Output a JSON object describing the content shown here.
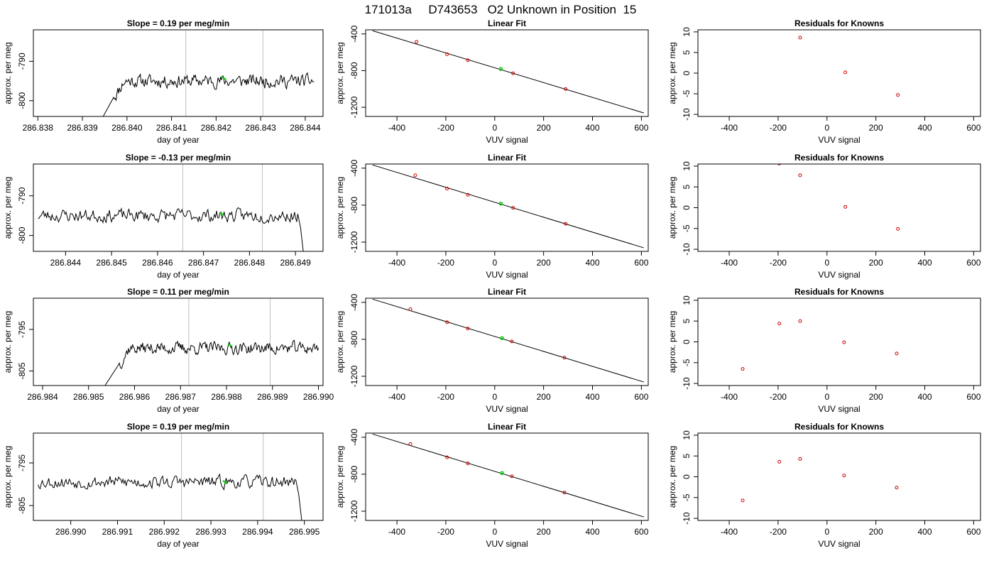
{
  "page": {
    "title": "171013a     D743653   O2 Unknown in Position  15"
  },
  "colors": {
    "trace": "#000000",
    "window_line": "#bebebe",
    "unknown_point": "#00cc00",
    "known_point": "#cc0000",
    "fit_line": "#000000"
  },
  "chart_data": [
    {
      "type": "line",
      "row": 0,
      "title": "Slope =  0.19  per meg/min",
      "xlabel": "day of year",
      "ylabel": "approx. per meg",
      "xlim": [
        286.8379,
        286.8444
      ],
      "ylim": [
        -804.0,
        -782.0
      ],
      "xticks": [
        "286.838",
        "286.839",
        "286.840",
        "286.841",
        "286.842",
        "286.843",
        "286.844"
      ],
      "xtick_values": [
        286.838,
        286.839,
        286.84,
        286.841,
        286.842,
        286.843,
        286.844
      ],
      "yticks": [
        "-790",
        "-800"
      ],
      "ytick_values": [
        -790,
        -800
      ],
      "x_start": 286.83937,
      "x_end": 286.8442,
      "base_level": -795.0,
      "noise": 1.8,
      "onset": [
        286.83937,
        -806.0,
        286.8397
      ],
      "tail": null,
      "seed": 11,
      "vlines": [
        286.84132,
        286.84305
      ],
      "marker": [
        286.84218,
        -794.3
      ]
    },
    {
      "type": "scatter",
      "row": 0,
      "title": "Linear Fit",
      "xlabel": "VUV signal",
      "ylabel": "approx. per meg",
      "xlim": [
        -528,
        628
      ],
      "ylim": [
        -1300,
        -355
      ],
      "xticks": [
        "-400",
        "-200",
        "0",
        "200",
        "400",
        "600"
      ],
      "xtick_values": [
        -400,
        -200,
        0,
        200,
        400,
        600
      ],
      "yticks": [
        "-400",
        "-800",
        "-1200"
      ],
      "ytick_values": [
        -400,
        -800,
        -1200
      ],
      "known_x": [
        -320,
        -195,
        -110,
        75,
        290
      ],
      "known_y": [
        -486,
        -621,
        -687,
        -829,
        -1001
      ],
      "unknown_x": [
        25
      ],
      "unknown_y": [
        -782
      ],
      "fit_x": [
        -500,
        610
      ],
      "fit_y": [
        -365,
        -1262
      ]
    },
    {
      "type": "scatter",
      "row": 0,
      "title": "Residuals for Knowns",
      "xlabel": "VUV signal",
      "ylabel": "approx. per meg",
      "xlim": [
        -528,
        628
      ],
      "ylim": [
        -10.5,
        10.5
      ],
      "xticks": [
        "-400",
        "-200",
        "0",
        "200",
        "400",
        "600"
      ],
      "xtick_values": [
        -400,
        -200,
        0,
        200,
        400,
        600
      ],
      "yticks": [
        "10",
        "5",
        "0",
        "-5",
        "-10"
      ],
      "ytick_values": [
        10,
        5,
        0,
        -5,
        -10
      ],
      "known_x": [
        -110,
        75,
        290
      ],
      "known_y": [
        8.6,
        0.2,
        -5.3
      ]
    },
    {
      "type": "line",
      "row": 1,
      "title": "Slope =  -0.13  per meg/min",
      "xlabel": "day of year",
      "ylabel": "approx. per meg",
      "xlim": [
        286.8433,
        286.8496
      ],
      "ylim": [
        -804.0,
        -782.0
      ],
      "xticks": [
        "286.844",
        "286.845",
        "286.846",
        "286.847",
        "286.848",
        "286.849"
      ],
      "xtick_values": [
        286.844,
        286.845,
        286.846,
        286.847,
        286.848,
        286.849
      ],
      "yticks": [
        "-790",
        "-800"
      ],
      "ytick_values": [
        -790,
        -800
      ],
      "x_start": 286.8434,
      "x_end": 286.84924,
      "base_level": -795.0,
      "noise": 1.8,
      "onset": null,
      "tail": [
        286.84905,
        -806.0
      ],
      "seed": 23,
      "vlines": [
        286.84655,
        286.84828
      ],
      "marker": [
        286.8474,
        -794.6
      ]
    },
    {
      "type": "scatter",
      "row": 1,
      "title": "Linear Fit",
      "xlabel": "VUV signal",
      "ylabel": "approx. per meg",
      "xlim": [
        -528,
        628
      ],
      "ylim": [
        -1300,
        -355
      ],
      "xticks": [
        "-400",
        "-200",
        "0",
        "200",
        "400",
        "600"
      ],
      "xtick_values": [
        -400,
        -200,
        0,
        200,
        400,
        600
      ],
      "yticks": [
        "-400",
        "-800",
        "-1200"
      ],
      "ytick_values": [
        -400,
        -800,
        -1200
      ],
      "known_x": [
        -325,
        -195,
        -110,
        75,
        290
      ],
      "known_y": [
        -477,
        -621,
        -688,
        -829,
        -1001
      ],
      "unknown_x": [
        25
      ],
      "unknown_y": [
        -783
      ],
      "fit_x": [
        -500,
        610
      ],
      "fit_y": [
        -365,
        -1262
      ]
    },
    {
      "type": "scatter",
      "row": 1,
      "title": "Residuals for Knowns",
      "xlabel": "VUV signal",
      "ylabel": "approx. per meg",
      "xlim": [
        -528,
        628
      ],
      "ylim": [
        -10.5,
        10.5
      ],
      "xticks": [
        "-400",
        "-200",
        "0",
        "200",
        "400",
        "600"
      ],
      "xtick_values": [
        -400,
        -200,
        0,
        200,
        400,
        600
      ],
      "yticks": [
        "10",
        "5",
        "0",
        "-5",
        "-10"
      ],
      "ytick_values": [
        10,
        5,
        0,
        -5,
        -10
      ],
      "known_x": [
        -195,
        -110,
        75,
        290
      ],
      "known_y": [
        10.6,
        7.8,
        0.2,
        -5.1
      ]
    },
    {
      "type": "line",
      "row": 2,
      "title": "Slope =  0.11  per meg/min",
      "xlabel": "day of year",
      "ylabel": "approx. per meg",
      "xlim": [
        286.9838,
        286.9901
      ],
      "ylim": [
        -808.5,
        -787.5
      ],
      "xticks": [
        "286.984",
        "286.985",
        "286.986",
        "286.987",
        "286.988",
        "286.989",
        "286.990"
      ],
      "xtick_values": [
        286.984,
        286.985,
        286.986,
        286.987,
        286.988,
        286.989,
        286.99
      ],
      "yticks": [
        "-795",
        "-805"
      ],
      "ytick_values": [
        -795,
        -805
      ],
      "x_start": 286.98527,
      "x_end": 286.99,
      "base_level": -799.5,
      "noise": 1.6,
      "onset": [
        286.98527,
        -810.0,
        286.98565
      ],
      "tail": null,
      "seed": 37,
      "vlines": [
        286.98718,
        286.98895
      ],
      "marker": [
        286.98808,
        -798.8
      ]
    },
    {
      "type": "scatter",
      "row": 2,
      "title": "Linear Fit",
      "xlabel": "VUV signal",
      "ylabel": "approx. per meg",
      "xlim": [
        -528,
        628
      ],
      "ylim": [
        -1300,
        -355
      ],
      "xticks": [
        "-400",
        "-200",
        "0",
        "200",
        "400",
        "600"
      ],
      "xtick_values": [
        -400,
        -200,
        0,
        200,
        400,
        600
      ],
      "yticks": [
        "-400",
        "-800",
        "-1200"
      ],
      "ytick_values": [
        -400,
        -800,
        -1200
      ],
      "known_x": [
        -345,
        -195,
        -110,
        70,
        285
      ],
      "known_y": [
        -474,
        -615,
        -683,
        -823,
        -998
      ],
      "unknown_x": [
        30
      ],
      "unknown_y": [
        -787
      ],
      "fit_x": [
        -500,
        610
      ],
      "fit_y": [
        -365,
        -1262
      ]
    },
    {
      "type": "scatter",
      "row": 2,
      "title": "Residuals for Knowns",
      "xlabel": "VUV signal",
      "ylabel": "approx. per meg",
      "xlim": [
        -528,
        628
      ],
      "ylim": [
        -10.5,
        10.5
      ],
      "xticks": [
        "-400",
        "-200",
        "0",
        "200",
        "400",
        "600"
      ],
      "xtick_values": [
        -400,
        -200,
        0,
        200,
        400,
        600
      ],
      "yticks": [
        "10",
        "5",
        "0",
        "-5",
        "-10"
      ],
      "ytick_values": [
        10,
        5,
        0,
        -5,
        -10
      ],
      "known_x": [
        -345,
        -195,
        -110,
        70,
        285
      ],
      "known_y": [
        -6.5,
        4.4,
        5.0,
        -0.1,
        -2.8
      ]
    },
    {
      "type": "line",
      "row": 3,
      "title": "Slope =  0.19  per meg/min",
      "xlabel": "day of year",
      "ylabel": "approx. per meg",
      "xlim": [
        286.9892,
        286.9954
      ],
      "ylim": [
        -808.5,
        -788.0
      ],
      "xticks": [
        "286.990",
        "286.991",
        "286.992",
        "286.993",
        "286.994",
        "286.995"
      ],
      "xtick_values": [
        286.99,
        286.991,
        286.992,
        286.993,
        286.994,
        286.995
      ],
      "yticks": [
        "-795",
        "-805"
      ],
      "ytick_values": [
        -795,
        -805
      ],
      "x_start": 286.9893,
      "x_end": 286.99505,
      "base_level": -799.5,
      "noise": 1.6,
      "onset": null,
      "tail": [
        286.99482,
        -810.0
      ],
      "seed": 53,
      "vlines": [
        286.99237,
        286.99412
      ],
      "marker": [
        286.9933,
        -799.5
      ]
    },
    {
      "type": "scatter",
      "row": 3,
      "title": "Linear Fit",
      "xlabel": "VUV signal",
      "ylabel": "approx. per meg",
      "xlim": [
        -528,
        628
      ],
      "ylim": [
        -1300,
        -355
      ],
      "xticks": [
        "-400",
        "-200",
        "0",
        "200",
        "400",
        "600"
      ],
      "xtick_values": [
        -400,
        -200,
        0,
        200,
        400,
        600
      ],
      "yticks": [
        "-400",
        "-800",
        "-1200"
      ],
      "ytick_values": [
        -400,
        -800,
        -1200
      ],
      "known_x": [
        -345,
        -195,
        -110,
        70,
        285
      ],
      "known_y": [
        -473,
        -617,
        -683,
        -823,
        -998
      ],
      "unknown_x": [
        30
      ],
      "unknown_y": [
        -787
      ],
      "fit_x": [
        -500,
        610
      ],
      "fit_y": [
        -365,
        -1262
      ]
    },
    {
      "type": "scatter",
      "row": 3,
      "title": "Residuals for Knowns",
      "xlabel": "VUV signal",
      "ylabel": "approx. per meg",
      "xlim": [
        -528,
        628
      ],
      "ylim": [
        -10.5,
        10.5
      ],
      "xticks": [
        "-400",
        "-200",
        "0",
        "200",
        "400",
        "600"
      ],
      "xtick_values": [
        -400,
        -200,
        0,
        200,
        400,
        600
      ],
      "yticks": [
        "10",
        "5",
        "0",
        "-5",
        "-10"
      ],
      "ytick_values": [
        10,
        5,
        0,
        -5,
        -10
      ],
      "known_x": [
        -345,
        -195,
        -110,
        70,
        285
      ],
      "known_y": [
        -5.7,
        3.6,
        4.3,
        0.3,
        -2.6
      ]
    }
  ]
}
